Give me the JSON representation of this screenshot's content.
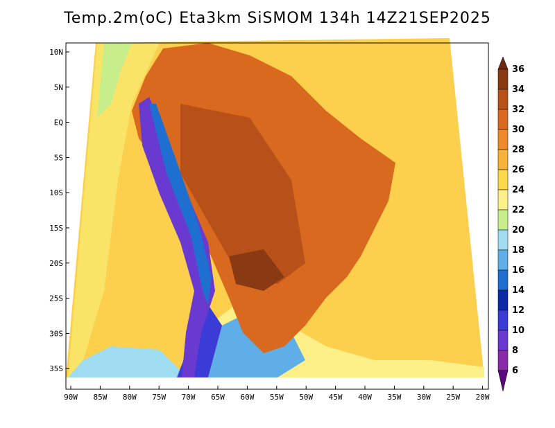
{
  "title": "Temp.2m(oC) Eta3km SiSMOM 134h 14Z21SEP2025",
  "map": {
    "lat_labels": [
      "10N",
      "5N",
      "EQ",
      "5S",
      "10S",
      "15S",
      "20S",
      "25S",
      "30S",
      "35S"
    ],
    "lon_labels": [
      "90W",
      "85W",
      "80W",
      "75W",
      "70W",
      "65W",
      "60W",
      "55W",
      "50W",
      "45W",
      "40W",
      "35W",
      "30W",
      "25W",
      "20W"
    ]
  },
  "colorbar": {
    "labels": [
      "36",
      "34",
      "32",
      "30",
      "28",
      "26",
      "24",
      "22",
      "20",
      "18",
      "16",
      "14",
      "12",
      "10",
      "8",
      "6"
    ],
    "colors": [
      "#6b2a0f",
      "#8a3a12",
      "#b8501a",
      "#d8691e",
      "#ee8a2a",
      "#f7b23a",
      "#fbd84a",
      "#fdf089",
      "#c7ee8a",
      "#9fdcf2",
      "#5faee8",
      "#1f6fd0",
      "#0a2aa8",
      "#3b3bd8",
      "#6a3ad0",
      "#8a2aa8",
      "#5a0a7a"
    ]
  }
}
